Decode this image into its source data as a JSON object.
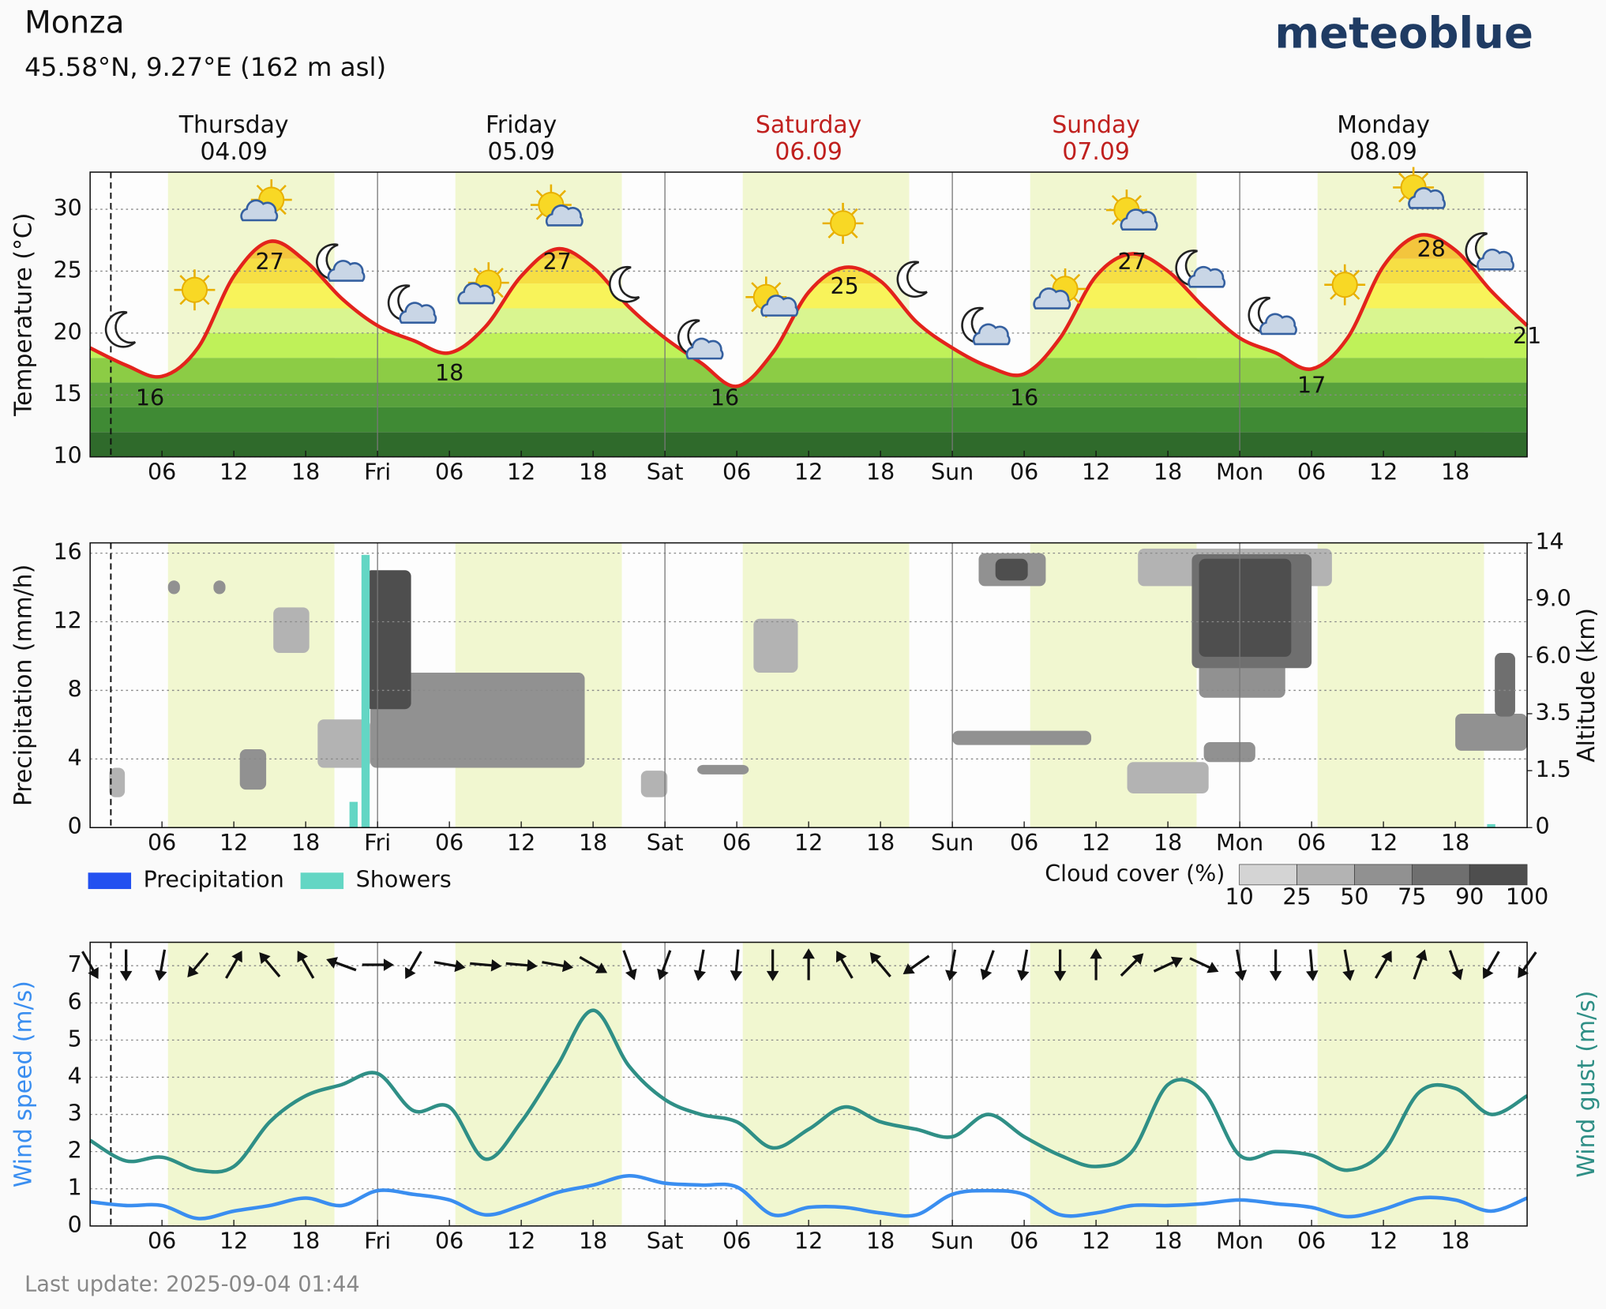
{
  "header": {
    "title": "Monza",
    "subtitle": "45.58°N, 9.27°E (162 m asl)",
    "brand": "meteoblue"
  },
  "footer": "Last update: 2025-09-04 01:44",
  "now": 1.73,
  "daylight": [
    [
      6.5,
      20.4
    ],
    [
      30.5,
      44.4
    ],
    [
      54.5,
      68.4
    ],
    [
      78.5,
      92.4
    ],
    [
      102.5,
      116.4
    ]
  ],
  "chart_data": [
    {
      "type": "line",
      "ylabel": "Temperature (°C)",
      "days": [
        {
          "name": "Thursday",
          "date": "04.09",
          "color": "#111111"
        },
        {
          "name": "Friday",
          "date": "05.09",
          "color": "#111111"
        },
        {
          "name": "Saturday",
          "date": "06.09",
          "color": "#c0201e"
        },
        {
          "name": "Sunday",
          "date": "07.09",
          "color": "#c0201e"
        },
        {
          "name": "Monday",
          "date": "08.09",
          "color": "#111111"
        }
      ],
      "xlim": [
        0,
        120
      ],
      "xticks": [
        {
          "value": 6,
          "label": "06"
        },
        12,
        18,
        {
          "value": 24,
          "label": "Fri"
        },
        {
          "value": 30,
          "label": "06"
        },
        {
          "value": 36,
          "label": "12"
        },
        {
          "value": 42,
          "label": "18"
        },
        {
          "value": 48,
          "label": "Sat"
        },
        {
          "value": 54,
          "label": "06"
        },
        {
          "value": 60,
          "label": "12"
        },
        {
          "value": 66,
          "label": "18"
        },
        {
          "value": 72,
          "label": "Sun"
        },
        {
          "value": 78,
          "label": "06"
        },
        {
          "value": 84,
          "label": "12"
        },
        {
          "value": 90,
          "label": "18"
        },
        {
          "value": 96,
          "label": "Mon"
        },
        {
          "value": 102,
          "label": "06"
        },
        {
          "value": 108,
          "label": "12"
        },
        {
          "value": 114,
          "label": "18"
        }
      ],
      "ylim": [
        10,
        33
      ],
      "yticks": [
        10,
        15,
        20,
        25,
        30
      ],
      "grid": true,
      "x": [
        0,
        3,
        6,
        9,
        12,
        15,
        18,
        21,
        24,
        27,
        30,
        33,
        36,
        39,
        42,
        45,
        48,
        51,
        54,
        57,
        60,
        63,
        66,
        69,
        72,
        75,
        78,
        81,
        84,
        87,
        90,
        93,
        96,
        99,
        102,
        105,
        108,
        111,
        114,
        117,
        120
      ],
      "series": [
        {
          "name": "Temperature",
          "color": "#e3231c",
          "values": [
            18.8,
            17.4,
            16.5,
            18.8,
            24.6,
            27.4,
            25.8,
            22.8,
            20.6,
            19.4,
            18.4,
            20.5,
            24.6,
            26.8,
            25.3,
            22.1,
            19.6,
            17.6,
            15.7,
            18.4,
            23.3,
            25.3,
            24.2,
            20.9,
            18.8,
            17.3,
            16.7,
            19.6,
            24.6,
            26.4,
            25.0,
            22.1,
            19.6,
            18.4,
            17.1,
            19.6,
            25.4,
            27.9,
            26.7,
            23.4,
            20.6
          ]
        }
      ],
      "extremes": [
        {
          "x": 5,
          "value": 16
        },
        {
          "x": 15,
          "value": 27
        },
        {
          "x": 30,
          "value": 18
        },
        {
          "x": 39,
          "value": 27
        },
        {
          "x": 53,
          "value": 16
        },
        {
          "x": 63,
          "value": 25
        },
        {
          "x": 78,
          "value": 16
        },
        {
          "x": 87,
          "value": 27
        },
        {
          "x": 102,
          "value": 17
        },
        {
          "x": 112,
          "value": 28
        },
        {
          "x": 120,
          "value": 21
        }
      ],
      "colorscale": {
        "edges": [
          10,
          12,
          14,
          16,
          18,
          20,
          22,
          24,
          26,
          28,
          30
        ],
        "colors": [
          "#2f6a2b",
          "#3f8a34",
          "#58a13c",
          "#8ccc45",
          "#bff159",
          "#d9f590",
          "#f8f35a",
          "#f6df44",
          "#f3c53d",
          "#f0a83a"
        ]
      }
    },
    {
      "type": "bar",
      "ylabel": "Precipitation (mm/h)",
      "y2label": "Altitude (km)",
      "xlim": [
        0,
        120
      ],
      "xticks": [
        {
          "value": 6,
          "label": "06"
        },
        12,
        18,
        {
          "value": 24,
          "label": "Fri"
        },
        {
          "value": 30,
          "label": "06"
        },
        {
          "value": 36,
          "label": "12"
        },
        {
          "value": 42,
          "label": "18"
        },
        {
          "value": 48,
          "label": "Sat"
        },
        {
          "value": 54,
          "label": "06"
        },
        {
          "value": 60,
          "label": "12"
        },
        {
          "value": 66,
          "label": "18"
        },
        {
          "value": 72,
          "label": "Sun"
        },
        {
          "value": 78,
          "label": "06"
        },
        {
          "value": 84,
          "label": "12"
        },
        {
          "value": 90,
          "label": "18"
        },
        {
          "value": 96,
          "label": "Mon"
        },
        {
          "value": 102,
          "label": "06"
        },
        {
          "value": 108,
          "label": "12"
        },
        {
          "value": 114,
          "label": "18"
        }
      ],
      "ylim": [
        0,
        16.6
      ],
      "yticks": [
        0,
        4,
        8,
        12,
        16
      ],
      "grid": true,
      "y2lim": [
        0,
        14
      ],
      "y2ticks": [
        0,
        1.5,
        3.5,
        {
          "value": 6,
          "label": "6.0"
        },
        {
          "value": 9,
          "label": "9.0"
        },
        14
      ],
      "y2scale": "levels",
      "legend": "bottom-left",
      "x": [
        22,
        23,
        117
      ],
      "series": [
        {
          "name": "Precipitation",
          "color": "#2250f0",
          "values": [
            0,
            0,
            0
          ]
        },
        {
          "name": "Showers",
          "color": "#63d6c4",
          "values": [
            1.5,
            15.9,
            0.2
          ]
        }
      ],
      "cloud_cover": [
        {
          "x": [
            19,
            23.4
          ],
          "alt": [
            1.6,
            3.3
          ],
          "value": 25
        },
        {
          "x": [
            15.3,
            18.3
          ],
          "alt": [
            6.2,
            8.6
          ],
          "value": 25
        },
        {
          "x": [
            55.4,
            59.1
          ],
          "alt": [
            5.3,
            8.0
          ],
          "value": 25
        },
        {
          "x": [
            87.5,
            103.7
          ],
          "alt": [
            10.2,
            13.5
          ],
          "value": 25
        },
        {
          "x": [
            86.6,
            93.4
          ],
          "alt": [
            0.9,
            1.8
          ],
          "value": 25
        },
        {
          "x": [
            1.6,
            2.9
          ],
          "alt": [
            0.8,
            1.6
          ],
          "value": 25
        },
        {
          "x": [
            46,
            48.2
          ],
          "alt": [
            0.8,
            1.5
          ],
          "value": 25
        },
        {
          "x": [
            23.4,
            41.3
          ],
          "alt": [
            1.6,
            5.3
          ],
          "value": 50
        },
        {
          "x": [
            6.5,
            7.5
          ],
          "alt": [
            9.5,
            10.7
          ],
          "value": 50
        },
        {
          "x": [
            10.3,
            11.3
          ],
          "alt": [
            9.5,
            10.7
          ],
          "value": 50
        },
        {
          "x": [
            12.5,
            14.7
          ],
          "alt": [
            1.0,
            2.25
          ],
          "value": 50
        },
        {
          "x": [
            74.2,
            79.8
          ],
          "alt": [
            10.2,
            13.1
          ],
          "value": 50
        },
        {
          "x": [
            72,
            83.6
          ],
          "alt": [
            2.4,
            2.9
          ],
          "value": 50
        },
        {
          "x": [
            92.6,
            99.8
          ],
          "alt": [
            4.2,
            5.9
          ],
          "value": 50
        },
        {
          "x": [
            93,
            97.3
          ],
          "alt": [
            1.8,
            2.5
          ],
          "value": 50
        },
        {
          "x": [
            114,
            120
          ],
          "alt": [
            2.2,
            3.5
          ],
          "value": 50
        },
        {
          "x": [
            50.7,
            55
          ],
          "alt": [
            1.4,
            1.7
          ],
          "value": 50
        },
        {
          "x": [
            92,
            102
          ],
          "alt": [
            5.5,
            13
          ],
          "value": 75
        },
        {
          "x": [
            117.3,
            119
          ],
          "alt": [
            3.4,
            6.2
          ],
          "value": 75
        },
        {
          "x": [
            23,
            26.8
          ],
          "alt": [
            3.7,
            11.6
          ],
          "value": 90
        },
        {
          "x": [
            75.6,
            78.3
          ],
          "alt": [
            10.7,
            12.6
          ],
          "value": 90
        },
        {
          "x": [
            92.6,
            100.3
          ],
          "alt": [
            6.0,
            12.6
          ],
          "value": 90
        }
      ],
      "cloud_cover_scale": {
        "label": "Cloud cover (%)",
        "ticks": [
          10,
          25,
          50,
          75,
          90,
          100
        ],
        "colors": [
          "#d4d4d4",
          "#b3b3b3",
          "#919191",
          "#6f6f6f",
          "#4e4e4e"
        ]
      }
    },
    {
      "type": "line",
      "ylabel": "Wind speed (m/s)",
      "y2label": "Wind gust (m/s)",
      "xlim": [
        0,
        120
      ],
      "xticks": [
        {
          "value": 6,
          "label": "06"
        },
        12,
        18,
        {
          "value": 24,
          "label": "Fri"
        },
        {
          "value": 30,
          "label": "06"
        },
        {
          "value": 36,
          "label": "12"
        },
        {
          "value": 42,
          "label": "18"
        },
        {
          "value": 48,
          "label": "Sat"
        },
        {
          "value": 54,
          "label": "06"
        },
        {
          "value": 60,
          "label": "12"
        },
        {
          "value": 66,
          "label": "18"
        },
        {
          "value": 72,
          "label": "Sun"
        },
        {
          "value": 78,
          "label": "06"
        },
        {
          "value": 84,
          "label": "12"
        },
        {
          "value": 90,
          "label": "18"
        },
        {
          "value": 96,
          "label": "Mon"
        },
        {
          "value": 102,
          "label": "06"
        },
        {
          "value": 108,
          "label": "12"
        },
        {
          "value": 114,
          "label": "18"
        }
      ],
      "ylim": [
        0,
        7.63
      ],
      "yticks": [
        0,
        1,
        2,
        3,
        4,
        5,
        6,
        7
      ],
      "grid": true,
      "x": [
        0,
        3,
        6,
        9,
        12,
        15,
        18,
        21,
        24,
        27,
        30,
        33,
        36,
        39,
        42,
        45,
        48,
        51,
        54,
        57,
        60,
        63,
        66,
        69,
        72,
        75,
        78,
        81,
        84,
        87,
        90,
        93,
        96,
        99,
        102,
        105,
        108,
        111,
        114,
        117,
        120
      ],
      "series": [
        {
          "name": "Wind speed",
          "color": "#3a8ef0",
          "values": [
            0.65,
            0.55,
            0.55,
            0.2,
            0.4,
            0.55,
            0.75,
            0.55,
            0.95,
            0.85,
            0.7,
            0.3,
            0.55,
            0.9,
            1.1,
            1.35,
            1.15,
            1.1,
            1.05,
            0.3,
            0.5,
            0.5,
            0.35,
            0.3,
            0.85,
            0.95,
            0.85,
            0.3,
            0.35,
            0.55,
            0.55,
            0.6,
            0.7,
            0.6,
            0.5,
            0.25,
            0.45,
            0.75,
            0.7,
            0.4,
            0.75
          ]
        },
        {
          "name": "Wind gust",
          "color": "#2f8f86",
          "values": [
            2.3,
            1.75,
            1.85,
            1.5,
            1.6,
            2.8,
            3.5,
            3.8,
            4.1,
            3.1,
            3.2,
            1.8,
            2.8,
            4.3,
            5.8,
            4.3,
            3.4,
            3.0,
            2.8,
            2.1,
            2.6,
            3.2,
            2.8,
            2.6,
            2.4,
            3.0,
            2.4,
            1.9,
            1.6,
            2.0,
            3.8,
            3.6,
            1.9,
            2.0,
            1.9,
            1.5,
            2.0,
            3.6,
            3.7,
            3.0,
            3.5
          ]
        }
      ],
      "wind_direction": [
        150,
        180,
        190,
        220,
        30,
        320,
        330,
        290,
        90,
        210,
        100,
        95,
        95,
        100,
        120,
        160,
        200,
        190,
        185,
        180,
        0,
        330,
        320,
        235,
        190,
        200,
        190,
        180,
        0,
        45,
        65,
        115,
        170,
        180,
        175,
        170,
        30,
        20,
        160,
        210,
        215
      ]
    }
  ]
}
